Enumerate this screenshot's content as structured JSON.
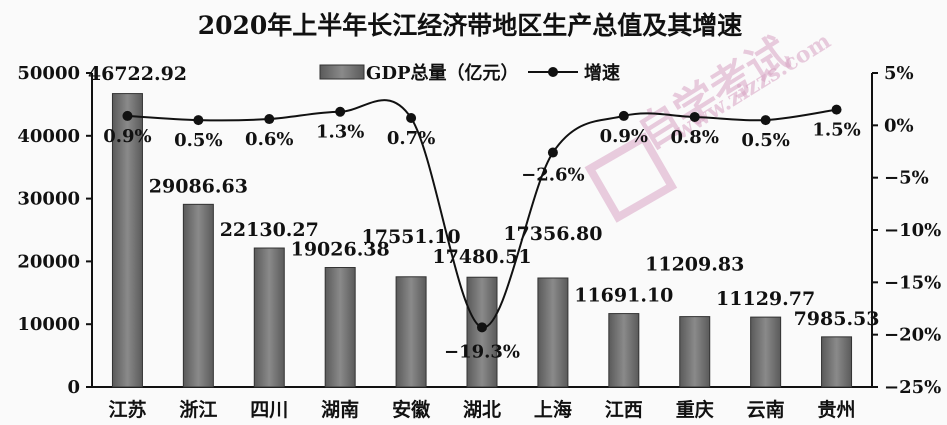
{
  "chart_data": {
    "type": "bar",
    "title": "2020年上半年长江经济带地区生产总值及其增速",
    "categories": [
      "江苏",
      "浙江",
      "四川",
      "湖南",
      "安徽",
      "湖北",
      "上海",
      "江西",
      "重庆",
      "云南",
      "贵州"
    ],
    "series": [
      {
        "name": "GDP总量（亿元）",
        "type": "bar",
        "axis": "left",
        "values": [
          46722.92,
          29086.63,
          22130.27,
          19026.38,
          17551.1,
          17480.51,
          17356.8,
          11691.1,
          11209.83,
          11129.77,
          7985.53
        ],
        "labels": [
          "46722.92",
          "29086.63",
          "22130.27",
          "19026.38",
          "17551.10",
          "17480.51",
          "17356.80",
          "11691.10",
          "11209.83",
          "11129.77",
          "7985.53"
        ]
      },
      {
        "name": "增速",
        "type": "line",
        "axis": "right",
        "values": [
          0.9,
          0.5,
          0.6,
          1.3,
          0.7,
          -19.3,
          -2.6,
          0.9,
          0.8,
          0.5,
          1.5
        ],
        "labels": [
          "0.9%",
          "0.5%",
          "0.6%",
          "1.3%",
          "0.7%",
          "−19.3%",
          "−2.6%",
          "0.9%",
          "0.8%",
          "0.5%",
          "1.5%"
        ]
      }
    ],
    "left_axis": {
      "ylim": [
        0,
        50000
      ],
      "ticks": [
        "0",
        "10000",
        "20000",
        "30000",
        "40000",
        "50000"
      ]
    },
    "right_axis": {
      "ylim": [
        -25,
        5
      ],
      "ticks": [
        "−25%",
        "−20%",
        "−15%",
        "−10%",
        "−5%",
        "0%",
        "5%"
      ]
    },
    "legend_position": "top-center",
    "grid": false,
    "colors": {
      "bar": "#7a7a7a",
      "bar_dark": "#4a4a4a",
      "line": "#111111",
      "watermark": "#d8a4c4"
    }
  },
  "watermark": {
    "text": [
      "自学考试",
      "www.zizzs.com"
    ]
  }
}
